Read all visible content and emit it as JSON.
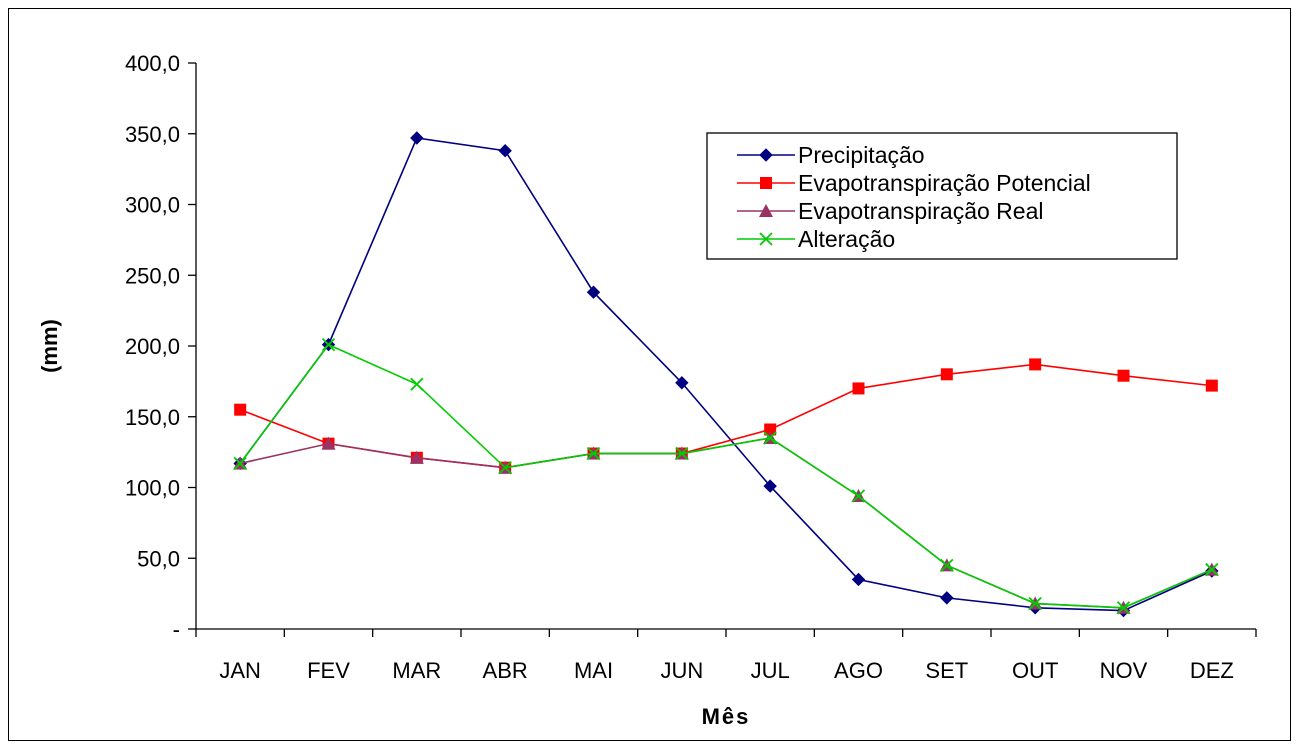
{
  "chart_data": {
    "type": "line",
    "title": "",
    "xlabel": "Mês",
    "ylabel": "(mm)",
    "ylim": [
      0,
      400
    ],
    "yticks": [
      0,
      50,
      100,
      150,
      200,
      250,
      300,
      350,
      400
    ],
    "ytick_labels": [
      "-",
      "50,0",
      "100,0",
      "150,0",
      "200,0",
      "250,0",
      "300,0",
      "350,0",
      "400,0"
    ],
    "categories": [
      "JAN",
      "FEV",
      "MAR",
      "ABR",
      "MAI",
      "JUN",
      "JUL",
      "AGO",
      "SET",
      "OUT",
      "NOV",
      "DEZ"
    ],
    "grid": false,
    "legend_position": "top-right",
    "series": [
      {
        "name": "Precipitação",
        "color": "#000080",
        "marker": "diamond",
        "values": [
          117,
          201,
          347,
          338,
          238,
          174,
          101,
          35,
          22,
          15,
          13,
          41
        ]
      },
      {
        "name": "Evapotranspiração Potencial",
        "color": "#ff0000",
        "marker": "square",
        "values": [
          155,
          131,
          121,
          114,
          124,
          124,
          141,
          170,
          180,
          187,
          179,
          172
        ]
      },
      {
        "name": "Evapotranspiração Real",
        "color": "#993366",
        "marker": "triangle",
        "values": [
          117,
          131,
          121,
          114,
          124,
          124,
          135,
          94,
          45,
          18,
          15,
          42
        ]
      },
      {
        "name": "Alteração",
        "color": "#00cc00",
        "marker": "x",
        "values": [
          117,
          201,
          173,
          114,
          124,
          124,
          135,
          94,
          45,
          18,
          15,
          42
        ]
      }
    ]
  }
}
